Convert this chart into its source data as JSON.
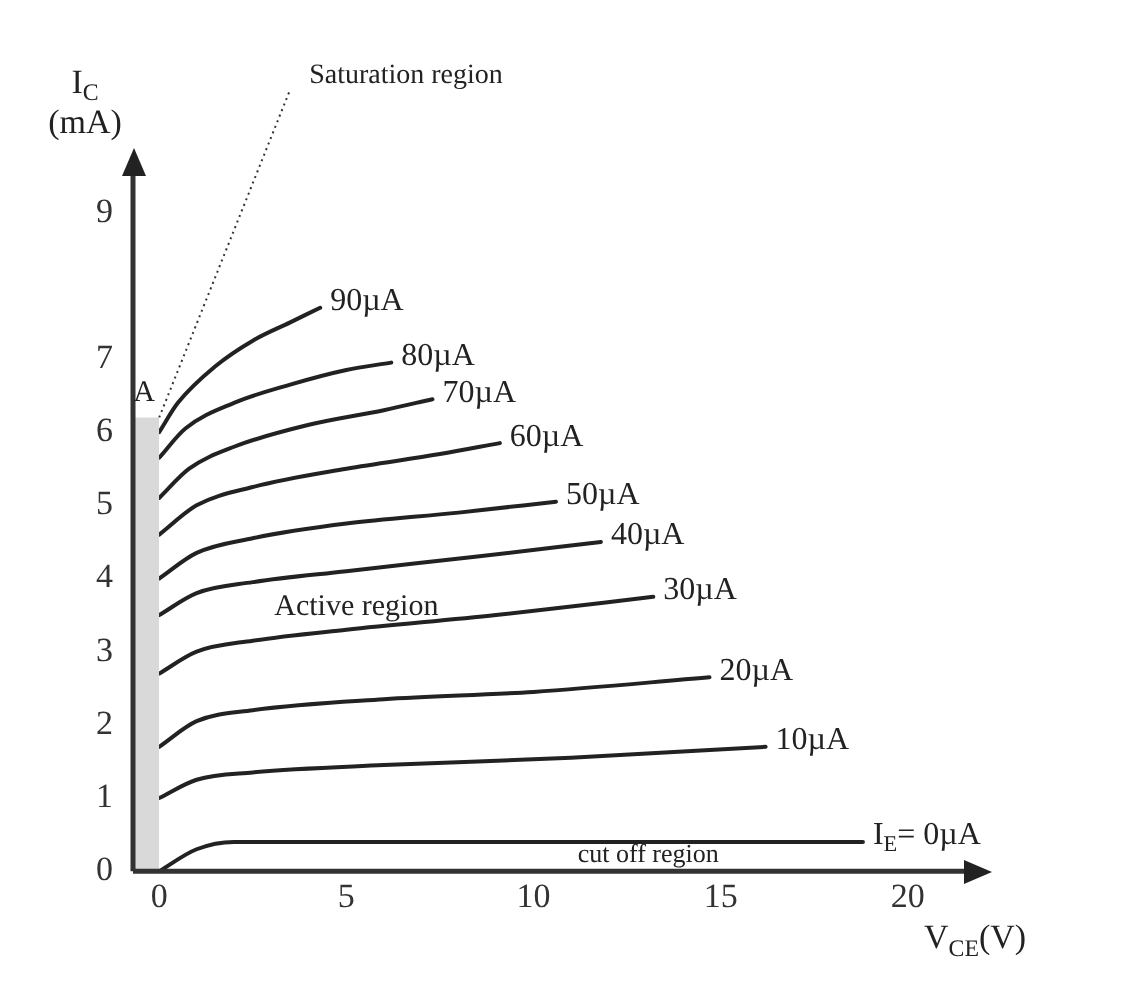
{
  "chart_data": {
    "type": "line",
    "xlabel": "V$_{CE}$(V)",
    "ylabel": "I$_{C}$ (mA)",
    "xlim": [
      -0.7,
      21.5
    ],
    "xticks": [
      0,
      5,
      10,
      15,
      20
    ],
    "ylim": [
      0,
      9.5
    ],
    "yticks": [
      0,
      1,
      2,
      3,
      4,
      5,
      6,
      7,
      9
    ],
    "grid": false,
    "legend": false,
    "marker": "none",
    "line_style": "solid",
    "series": [
      {
        "type": "area",
        "color": "#d9d9d9",
        "x": [
          -0.7,
          0
        ],
        "values": [
          6.2,
          6.2
        ]
      },
      {
        "name": "90µA",
        "color": "#222222",
        "x": [
          0,
          0.5,
          1.5,
          2.5,
          3.5,
          4.3
        ],
        "values": [
          6.0,
          6.4,
          6.9,
          7.25,
          7.5,
          7.7
        ]
      },
      {
        "name": "80µA",
        "color": "#222222",
        "x": [
          0,
          0.7,
          2,
          3.5,
          5,
          6.2
        ],
        "values": [
          5.65,
          6.05,
          6.4,
          6.65,
          6.85,
          6.95
        ]
      },
      {
        "name": "70µA",
        "color": "#222222",
        "x": [
          0,
          0.8,
          2,
          4,
          6,
          7.3
        ],
        "values": [
          5.1,
          5.5,
          5.8,
          6.1,
          6.3,
          6.45
        ]
      },
      {
        "name": "60µA",
        "color": "#222222",
        "x": [
          0,
          1,
          2.5,
          5,
          7.5,
          9.1
        ],
        "values": [
          4.6,
          5.0,
          5.25,
          5.5,
          5.7,
          5.85
        ]
      },
      {
        "name": "50µA",
        "color": "#222222",
        "x": [
          0,
          1,
          2.5,
          5,
          8,
          10.6
        ],
        "values": [
          4.0,
          4.35,
          4.55,
          4.75,
          4.9,
          5.05
        ]
      },
      {
        "name": "40µA",
        "color": "#222222",
        "x": [
          0,
          1,
          2.5,
          5,
          8.5,
          11.8
        ],
        "values": [
          3.5,
          3.8,
          3.95,
          4.1,
          4.3,
          4.5
        ]
      },
      {
        "name": "30µA",
        "color": "#222222",
        "x": [
          0,
          1,
          2.5,
          5,
          9,
          13.2
        ],
        "values": [
          2.7,
          3.0,
          3.15,
          3.3,
          3.5,
          3.75
        ]
      },
      {
        "name": "20µA",
        "color": "#222222",
        "x": [
          0,
          1,
          2.5,
          6,
          10,
          14.7
        ],
        "values": [
          1.7,
          2.05,
          2.2,
          2.35,
          2.45,
          2.65
        ]
      },
      {
        "name": "10µA",
        "color": "#222222",
        "x": [
          0,
          1,
          2.5,
          6,
          11,
          16.2
        ],
        "values": [
          1.0,
          1.25,
          1.35,
          1.45,
          1.55,
          1.7
        ]
      },
      {
        "name": "I$_{E}$= 0µA",
        "color": "#222222",
        "x": [
          0,
          1,
          2,
          10,
          18.8
        ],
        "values": [
          0,
          0.3,
          0.4,
          0.4,
          0.4
        ]
      }
    ],
    "annotations": [
      {
        "text": "Saturation region",
        "x": 0,
        "y": 6.2
      },
      {
        "text": "A",
        "x": 0,
        "y": 6.2
      },
      "Active region",
      "cut off region"
    ]
  }
}
